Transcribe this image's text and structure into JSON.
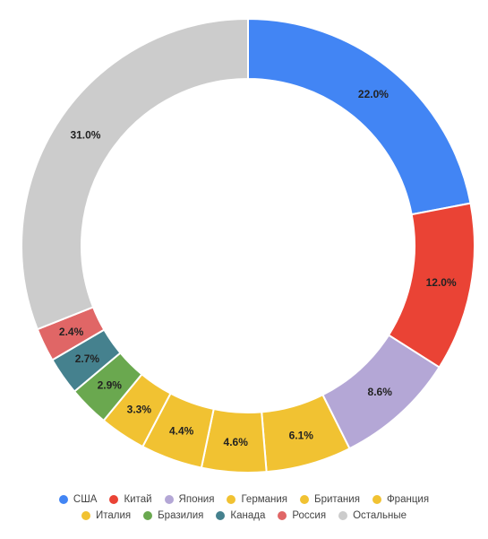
{
  "chart_data": {
    "type": "pie",
    "donut": true,
    "categories": [
      "США",
      "Китай",
      "Япония",
      "Германия",
      "Британия",
      "Франция",
      "Италия",
      "Бразилия",
      "Канада",
      "Россия",
      "Остальные"
    ],
    "values": [
      22.0,
      12.0,
      8.6,
      6.1,
      4.6,
      4.4,
      3.3,
      2.9,
      2.7,
      2.4,
      31.0
    ],
    "labels": [
      "22.0%",
      "12.0%",
      "8.6%",
      "6.1%",
      "4.6%",
      "4.4%",
      "3.3%",
      "2.9%",
      "2.7%",
      "2.4%",
      "31.0%"
    ],
    "colors": [
      "#4285f4",
      "#ea4335",
      "#b4a7d6",
      "#f1c232",
      "#f1c232",
      "#f1c232",
      "#f1c232",
      "#6aa84f",
      "#45818e",
      "#e06666",
      "#cccccc"
    ],
    "legend_position": "bottom",
    "title": ""
  }
}
